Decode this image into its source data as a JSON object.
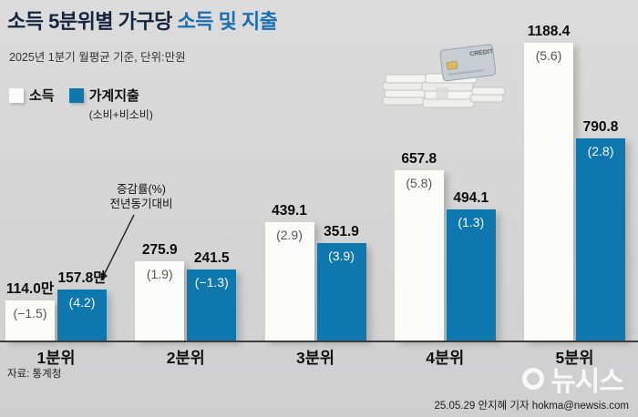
{
  "theme": {
    "background": "#d6d6d7",
    "accent_blue": "#0d77ae",
    "title_navy": "#16243e",
    "title_accent_blue": "#1770b5"
  },
  "header": {
    "title_dark": "소득 5분위별 가구당 ",
    "title_accent": "소득 및 지출",
    "subtitle": "2025년 1분기 월평균 기준, 단위:만원"
  },
  "legend": {
    "income_label": "소득",
    "spending_label": "가계지출",
    "spending_sub": "(소비+비소비)"
  },
  "annotation": {
    "line1": "증감률(%)",
    "line2": "전년동기대비"
  },
  "illustration": {
    "card_label": "CREDIT"
  },
  "source": "자료: 통계청",
  "watermark": "뉴시스",
  "footer": "25.05.29 안지혜 기자 hokma@newsis.com",
  "chart_data": {
    "type": "bar",
    "title": "소득 5분위별 가구당 소득 및 지출",
    "subtitle": "2025년 1분기 월평균 기준, 단위:만원",
    "unit": "만원",
    "categories": [
      "1분위",
      "2분위",
      "3분위",
      "4분위",
      "5분위"
    ],
    "series": [
      {
        "name": "소득",
        "values": [
          114.0,
          275.9,
          439.1,
          657.8,
          1188.4
        ],
        "value_labels": [
          "114.0만",
          "275.9",
          "439.1",
          "657.8",
          "1188.4"
        ],
        "pct_change": [
          -1.5,
          1.9,
          2.9,
          5.8,
          5.6
        ],
        "pct_labels": [
          "(−1.5)",
          "(1.9)",
          "(2.9)",
          "(5.8)",
          "(5.6)"
        ],
        "color": "#fcfcfb"
      },
      {
        "name": "가계지출(소비+비소비)",
        "values": [
          157.8,
          241.5,
          351.9,
          494.1,
          790.8
        ],
        "value_labels": [
          "157.8만",
          "241.5",
          "351.9",
          "494.1",
          "790.8"
        ],
        "pct_change": [
          4.2,
          -1.3,
          3.9,
          1.3,
          2.8
        ],
        "pct_labels": [
          "(4.2)",
          "(−1.3)",
          "(3.9)",
          "(1.3)",
          "(2.8)"
        ],
        "color": "#0d77ae"
      }
    ],
    "ylim": [
      0,
      1250
    ],
    "grid": false,
    "legend_position": "top-left",
    "annotation": "증감률(%) 전년동기대비 → 화살표가 1분위 가계지출 (4.2)를 가리킴"
  }
}
